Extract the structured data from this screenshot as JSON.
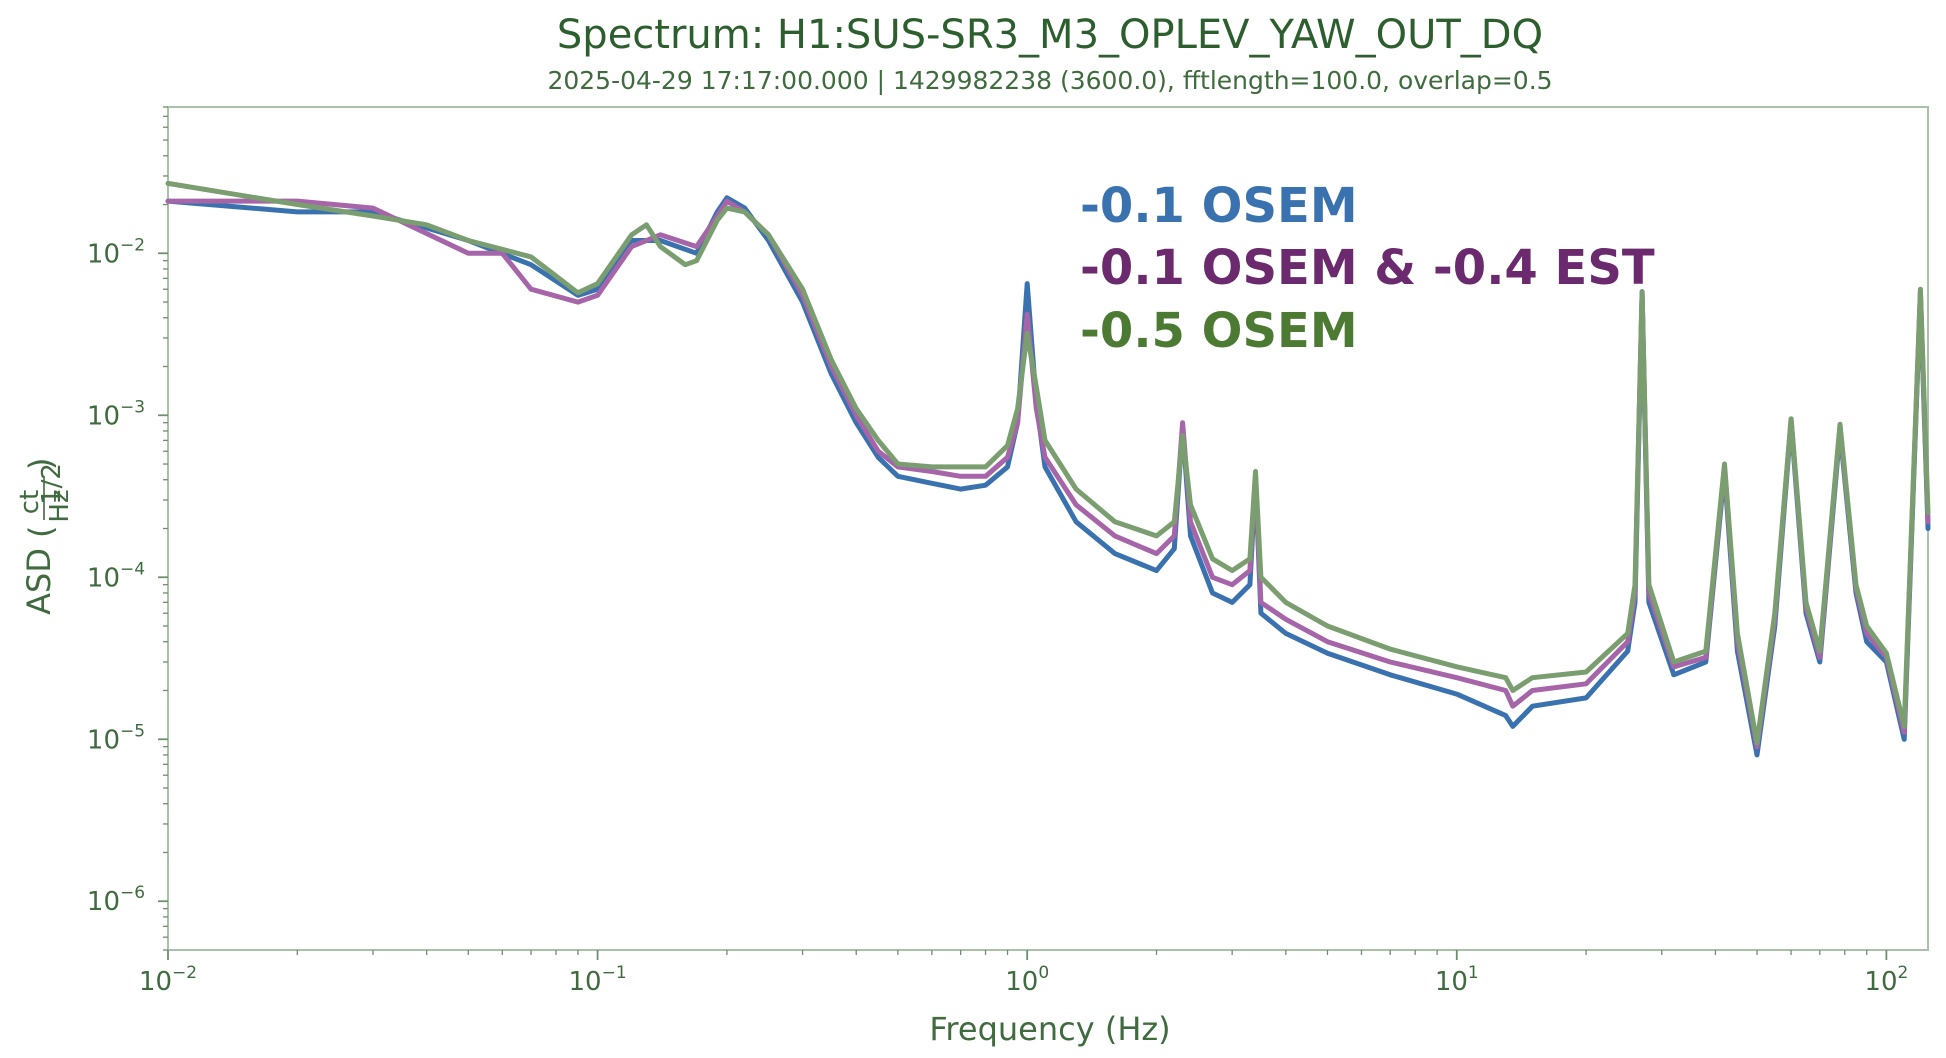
{
  "chart_data": {
    "type": "line",
    "title": "Spectrum: H1:SUS-SR3_M3_OPLEV_YAW_OUT_DQ",
    "subtitle": "2025-04-29 17:17:00.000 | 1429982238 (3600.0), fftlength=100.0, overlap=0.5",
    "xlabel": "Frequency (Hz)",
    "ylabel": "ASD",
    "ylabel_unit": {
      "num": "ct",
      "den": "Hz",
      "exp": "1/2"
    },
    "xscale": "log",
    "yscale": "log",
    "xlim": [
      0.01,
      125
    ],
    "ylim": [
      5e-07,
      0.08
    ],
    "grid": false,
    "x_ticks": [
      {
        "base": "10",
        "exp": "−2"
      },
      {
        "base": "10",
        "exp": "−1"
      },
      {
        "base": "10",
        "exp": "0"
      },
      {
        "base": "10",
        "exp": "1"
      },
      {
        "base": "10",
        "exp": "2"
      }
    ],
    "y_ticks": [
      {
        "base": "10",
        "exp": "−6"
      },
      {
        "base": "10",
        "exp": "−5"
      },
      {
        "base": "10",
        "exp": "−4"
      },
      {
        "base": "10",
        "exp": "−3"
      },
      {
        "base": "10",
        "exp": "−2"
      }
    ],
    "legend_placement": "top-center",
    "legend": [
      {
        "label": "-0.1 OSEM",
        "color": "#3a72b0"
      },
      {
        "label": "-0.1 OSEM  &  -0.4 EST",
        "color": "#6b2a6e"
      },
      {
        "label": "-0.5 OSEM",
        "color": "#4c7a33"
      }
    ],
    "series": [
      {
        "name": "-0.1 OSEM",
        "color": "#3a72b0",
        "points": [
          [
            0.01,
            0.021
          ],
          [
            0.02,
            0.018
          ],
          [
            0.03,
            0.018
          ],
          [
            0.05,
            0.012
          ],
          [
            0.07,
            0.0085
          ],
          [
            0.09,
            0.0055
          ],
          [
            0.1,
            0.006
          ],
          [
            0.12,
            0.012
          ],
          [
            0.14,
            0.012
          ],
          [
            0.17,
            0.01
          ],
          [
            0.19,
            0.018
          ],
          [
            0.2,
            0.022
          ],
          [
            0.22,
            0.019
          ],
          [
            0.25,
            0.012
          ],
          [
            0.3,
            0.005
          ],
          [
            0.35,
            0.0018
          ],
          [
            0.4,
            0.0009
          ],
          [
            0.45,
            0.00055
          ],
          [
            0.5,
            0.00042
          ],
          [
            0.6,
            0.00038
          ],
          [
            0.7,
            0.00035
          ],
          [
            0.8,
            0.00037
          ],
          [
            0.9,
            0.00048
          ],
          [
            0.95,
            0.0009
          ],
          [
            1.0,
            0.0065
          ],
          [
            1.05,
            0.0012
          ],
          [
            1.1,
            0.00048
          ],
          [
            1.3,
            0.00022
          ],
          [
            1.6,
            0.00014
          ],
          [
            2.0,
            0.00011
          ],
          [
            2.2,
            0.00015
          ],
          [
            2.3,
            0.00085
          ],
          [
            2.4,
            0.00018
          ],
          [
            2.7,
            8e-05
          ],
          [
            3.0,
            7e-05
          ],
          [
            3.3,
            9e-05
          ],
          [
            3.4,
            0.0004
          ],
          [
            3.5,
            6e-05
          ],
          [
            4.0,
            4.5e-05
          ],
          [
            5.0,
            3.4e-05
          ],
          [
            7.0,
            2.5e-05
          ],
          [
            10.0,
            1.9e-05
          ],
          [
            13.0,
            1.4e-05
          ],
          [
            13.5,
            1.2e-05
          ],
          [
            15.0,
            1.6e-05
          ],
          [
            20.0,
            1.8e-05
          ],
          [
            25.0,
            3.5e-05
          ],
          [
            26.0,
            7e-05
          ],
          [
            27.0,
            0.0055
          ],
          [
            28.0,
            7e-05
          ],
          [
            32.0,
            2.5e-05
          ],
          [
            38.0,
            3e-05
          ],
          [
            42.0,
            0.00045
          ],
          [
            45.0,
            3.5e-05
          ],
          [
            50.0,
            8e-06
          ],
          [
            55.0,
            5e-05
          ],
          [
            60.0,
            0.0009
          ],
          [
            65.0,
            6e-05
          ],
          [
            70.0,
            3e-05
          ],
          [
            78.0,
            0.0008
          ],
          [
            85.0,
            8e-05
          ],
          [
            90.0,
            4e-05
          ],
          [
            100.0,
            3e-05
          ],
          [
            110.0,
            1e-05
          ],
          [
            120.0,
            0.0055
          ],
          [
            125.0,
            0.0002
          ]
        ]
      },
      {
        "name": "-0.1 OSEM  &  -0.4 EST",
        "color": "#a565a8",
        "points": [
          [
            0.01,
            0.021
          ],
          [
            0.02,
            0.021
          ],
          [
            0.03,
            0.019
          ],
          [
            0.05,
            0.01
          ],
          [
            0.06,
            0.01
          ],
          [
            0.07,
            0.006
          ],
          [
            0.09,
            0.005
          ],
          [
            0.1,
            0.0055
          ],
          [
            0.12,
            0.011
          ],
          [
            0.14,
            0.013
          ],
          [
            0.17,
            0.011
          ],
          [
            0.19,
            0.017
          ],
          [
            0.2,
            0.021
          ],
          [
            0.22,
            0.018
          ],
          [
            0.25,
            0.013
          ],
          [
            0.3,
            0.0055
          ],
          [
            0.35,
            0.002
          ],
          [
            0.4,
            0.001
          ],
          [
            0.45,
            0.0006
          ],
          [
            0.5,
            0.00048
          ],
          [
            0.6,
            0.00045
          ],
          [
            0.7,
            0.00042
          ],
          [
            0.8,
            0.00042
          ],
          [
            0.9,
            0.00055
          ],
          [
            0.95,
            0.0009
          ],
          [
            1.0,
            0.0042
          ],
          [
            1.05,
            0.0011
          ],
          [
            1.1,
            0.00055
          ],
          [
            1.3,
            0.00028
          ],
          [
            1.6,
            0.00018
          ],
          [
            2.0,
            0.00014
          ],
          [
            2.2,
            0.00018
          ],
          [
            2.3,
            0.0009
          ],
          [
            2.4,
            0.00022
          ],
          [
            2.7,
            0.0001
          ],
          [
            3.0,
            9e-05
          ],
          [
            3.3,
            0.00011
          ],
          [
            3.4,
            0.00042
          ],
          [
            3.5,
            7e-05
          ],
          [
            4.0,
            5.5e-05
          ],
          [
            5.0,
            4e-05
          ],
          [
            7.0,
            3e-05
          ],
          [
            10.0,
            2.4e-05
          ],
          [
            13.0,
            2e-05
          ],
          [
            13.5,
            1.6e-05
          ],
          [
            15.0,
            2e-05
          ],
          [
            20.0,
            2.2e-05
          ],
          [
            25.0,
            4e-05
          ],
          [
            26.0,
            8e-05
          ],
          [
            27.0,
            0.0058
          ],
          [
            28.0,
            8e-05
          ],
          [
            32.0,
            2.8e-05
          ],
          [
            38.0,
            3.2e-05
          ],
          [
            42.0,
            0.00048
          ],
          [
            45.0,
            4e-05
          ],
          [
            50.0,
            9e-06
          ],
          [
            55.0,
            5.5e-05
          ],
          [
            60.0,
            0.00095
          ],
          [
            65.0,
            6.5e-05
          ],
          [
            70.0,
            3.2e-05
          ],
          [
            78.0,
            0.00085
          ],
          [
            85.0,
            8.5e-05
          ],
          [
            90.0,
            4.5e-05
          ],
          [
            100.0,
            3.2e-05
          ],
          [
            110.0,
            1.1e-05
          ],
          [
            120.0,
            0.0058
          ],
          [
            125.0,
            0.00022
          ]
        ]
      },
      {
        "name": "-0.5 OSEM",
        "color": "#7b9e71",
        "points": [
          [
            0.01,
            0.027
          ],
          [
            0.02,
            0.02
          ],
          [
            0.03,
            0.017
          ],
          [
            0.04,
            0.015
          ],
          [
            0.05,
            0.012
          ],
          [
            0.07,
            0.0095
          ],
          [
            0.09,
            0.0057
          ],
          [
            0.1,
            0.0065
          ],
          [
            0.12,
            0.013
          ],
          [
            0.13,
            0.015
          ],
          [
            0.14,
            0.011
          ],
          [
            0.16,
            0.0085
          ],
          [
            0.17,
            0.009
          ],
          [
            0.19,
            0.016
          ],
          [
            0.2,
            0.019
          ],
          [
            0.22,
            0.018
          ],
          [
            0.25,
            0.013
          ],
          [
            0.3,
            0.006
          ],
          [
            0.35,
            0.0022
          ],
          [
            0.4,
            0.0011
          ],
          [
            0.45,
            0.0007
          ],
          [
            0.5,
            0.0005
          ],
          [
            0.6,
            0.00048
          ],
          [
            0.7,
            0.00048
          ],
          [
            0.8,
            0.00048
          ],
          [
            0.9,
            0.00065
          ],
          [
            0.95,
            0.0011
          ],
          [
            1.0,
            0.0032
          ],
          [
            1.05,
            0.0015
          ],
          [
            1.1,
            0.0007
          ],
          [
            1.3,
            0.00035
          ],
          [
            1.6,
            0.00022
          ],
          [
            2.0,
            0.00018
          ],
          [
            2.2,
            0.00022
          ],
          [
            2.3,
            0.00075
          ],
          [
            2.4,
            0.00028
          ],
          [
            2.7,
            0.00013
          ],
          [
            3.0,
            0.00011
          ],
          [
            3.3,
            0.00013
          ],
          [
            3.4,
            0.00045
          ],
          [
            3.5,
            0.0001
          ],
          [
            4.0,
            7e-05
          ],
          [
            5.0,
            5e-05
          ],
          [
            7.0,
            3.6e-05
          ],
          [
            10.0,
            2.8e-05
          ],
          [
            13.0,
            2.4e-05
          ],
          [
            13.5,
            2e-05
          ],
          [
            15.0,
            2.4e-05
          ],
          [
            20.0,
            2.6e-05
          ],
          [
            25.0,
            4.5e-05
          ],
          [
            26.0,
            9e-05
          ],
          [
            27.0,
            0.0058
          ],
          [
            28.0,
            9e-05
          ],
          [
            32.0,
            3e-05
          ],
          [
            38.0,
            3.5e-05
          ],
          [
            42.0,
            0.0005
          ],
          [
            45.0,
            4.5e-05
          ],
          [
            50.0,
            9.5e-06
          ],
          [
            55.0,
            6e-05
          ],
          [
            60.0,
            0.00095
          ],
          [
            65.0,
            7e-05
          ],
          [
            70.0,
            3.5e-05
          ],
          [
            78.0,
            0.00088
          ],
          [
            85.0,
            9e-05
          ],
          [
            90.0,
            5e-05
          ],
          [
            100.0,
            3.4e-05
          ],
          [
            110.0,
            1.2e-05
          ],
          [
            120.0,
            0.006
          ],
          [
            125.0,
            0.00025
          ]
        ]
      }
    ]
  }
}
